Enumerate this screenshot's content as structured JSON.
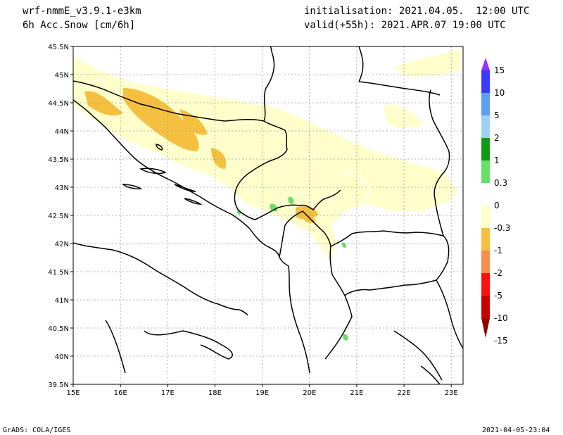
{
  "header": {
    "model": "wrf-nmmE_v3.9.1-e3km",
    "field": "6h Acc.Snow [cm/6h]",
    "init": "initialisation: 2021.04.05.  12:00 UTC",
    "valid": "valid(+55h): 2021.APR.07 19:00 UTC"
  },
  "map": {
    "lon_range": [
      15,
      23.25
    ],
    "lat_range": [
      39.5,
      45.5
    ],
    "lon_ticks": [
      "15E",
      "16E",
      "17E",
      "18E",
      "19E",
      "20E",
      "21E",
      "22E",
      "23E"
    ],
    "lat_ticks": [
      "39.5N",
      "40N",
      "40.5N",
      "41N",
      "41.5N",
      "42N",
      "42.5N",
      "43N",
      "43.5N",
      "44N",
      "44.5N",
      "45N",
      "45.5N"
    ],
    "grid": true,
    "coastline_color": "#000000"
  },
  "colorbar": {
    "labels": [
      "15",
      "10",
      "5",
      "2",
      "1",
      "0.3",
      "0",
      "-0.3",
      "-1",
      "-2",
      "-5",
      "-10",
      "-15"
    ],
    "colors": [
      "#9b30ff",
      "#3a3aff",
      "#5aa0f0",
      "#9fd0f8",
      "#129b12",
      "#66e066",
      "#ffffff",
      "#ffffcc",
      "#f5c040",
      "#f59050",
      "#ff1010",
      "#c80000",
      "#900000"
    ]
  },
  "footer": {
    "left": "GrADS: COLA/IGES",
    "right": "2021-04-05-23:04"
  }
}
